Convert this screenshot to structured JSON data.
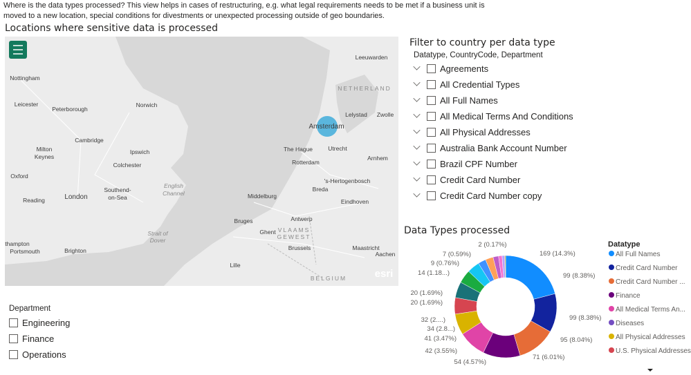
{
  "header": {
    "description": [
      "Where is the data types processed? This view helps in cases of restructuring, e.g. what legal requirements needs to be met if a business unit is",
      "moved to a new location, special conditions for divestments or unexpected processing outside of geo boundaries."
    ]
  },
  "map": {
    "title": "Locations where sensitive data is processed",
    "labels": [
      "Leeuwarden",
      "NETHERLAND",
      "Nottingham",
      "Leicester",
      "Peterborough",
      "Norwich",
      "Lelystad",
      "Zwolle",
      "Amsterdam",
      "Cambridge",
      "Ipswich",
      "The Hague",
      "Utrecht",
      "Milton",
      "Keynes",
      "Colchester",
      "Rotterdam",
      "Arnhem",
      "Oxford",
      "Southend-",
      "on-Sea",
      "English",
      "Channel",
      "'s-Hertogenbosch",
      "Reading",
      "London",
      "Breda",
      "Middelburg",
      "Eindhoven",
      "Bruges",
      "Antwerp",
      "Ghent",
      "VLAAMS",
      "GEWEST",
      "Strait of",
      "Dover",
      "Brussels",
      "Maastricht",
      "Aachen",
      "thampton",
      "Portsmouth",
      "Brighton",
      "Lille",
      "BELGIUM",
      "esri"
    ]
  },
  "filter": {
    "title": "Filter to country per data type",
    "fields": "Datatype, CountryCode, Department",
    "items": [
      "Agreements",
      "All Credential Types",
      "All Full Names",
      "All Medical Terms And Conditions",
      "All Physical Addresses",
      "Australia Bank Account Number",
      "Brazil CPF Number",
      "Credit Card Number",
      "Credit Card Number copy"
    ]
  },
  "department": {
    "title": "Department",
    "items": [
      "Engineering",
      "Finance",
      "Operations"
    ]
  },
  "donut": {
    "type": "pie",
    "title": "Data Types processed",
    "values": [
      169,
      99,
      99,
      95,
      71,
      54,
      42,
      41,
      34,
      32,
      20,
      20,
      14,
      9,
      7,
      2
    ],
    "value_labels": [
      "169 (14.3%)",
      "99 (8.38%)",
      "99 (8.38%)",
      "95 (8.04%)",
      "71 (6.01%)",
      "54 (4.57%)",
      "42 (3.55%)",
      "41 (3.47%)",
      "34 (2.8...)",
      "32 (2....)",
      "20 (1.69%)",
      "20 (1.69%)",
      "14 (1.18...)",
      "9 (0.76%)",
      "7 (0.59%)",
      "2 (0.17%)"
    ],
    "colors": [
      "#118dff",
      "#12239e",
      "#e66c37",
      "#6b007b",
      "#e044a7",
      "#d9b300",
      "#d64550",
      "#197278",
      "#1aab40",
      "#15c6f4",
      "#4092ff",
      "#ffa058",
      "#be5dc9",
      "#f472d0",
      "#b5a1ff",
      "#c4a200"
    ],
    "legend": {
      "title": "Datatype",
      "entries": [
        {
          "name": "All Full Names",
          "color": "#118dff"
        },
        {
          "name": "Credit Card Number",
          "color": "#12239e"
        },
        {
          "name": "Credit Card Number ...",
          "color": "#e66c37"
        },
        {
          "name": "Finance",
          "color": "#6b007b"
        },
        {
          "name": "All Medical Terms An...",
          "color": "#e044a7"
        },
        {
          "name": "Diseases",
          "color": "#744ec2"
        },
        {
          "name": "All Physical Addresses",
          "color": "#d9b300"
        },
        {
          "name": "U.S. Physical Addresses",
          "color": "#d64550"
        }
      ]
    }
  }
}
